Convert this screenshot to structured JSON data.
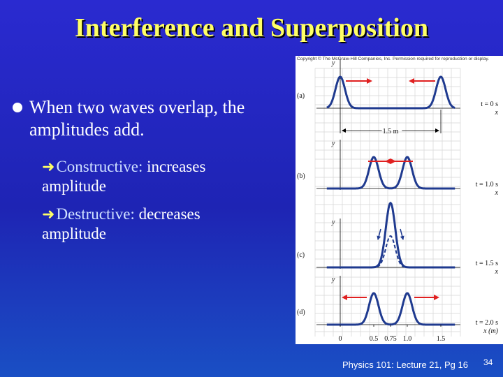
{
  "slide": {
    "title": "Interference and Superposition",
    "bullet": {
      "line1": "When two waves overlap, the",
      "line2": "amplitudes add."
    },
    "sub_bullets": [
      {
        "term": "Constructive:",
        "rest": " increases",
        "line2": "amplitude"
      },
      {
        "term": "Destructive:",
        "rest": " decreases",
        "line2": "amplitude"
      }
    ],
    "footer": "Physics 101: Lecture 21, Pg 16",
    "page_number": "34"
  },
  "figure": {
    "credit": "Copyright © The McGraw-Hill Companies, Inc. Permission required for reproduction or display.",
    "axis_y_label": "y",
    "axis_x_label": "x",
    "axis_x_label_last": "x (m)",
    "distance_label": "1.5 m",
    "panels": [
      {
        "label": "(a)",
        "time": "t = 0 s"
      },
      {
        "label": "(b)",
        "time": "t = 1.0 s"
      },
      {
        "label": "(c)",
        "time": "t = 1.5 s"
      },
      {
        "label": "(d)",
        "time": "t = 2.0 s"
      }
    ],
    "x_ticks": [
      "0",
      "0.5",
      "0.75",
      "1.0",
      "1.5"
    ],
    "colors": {
      "wave": "#1f3a8f",
      "arrow": "#e02020",
      "grid": "#d4d4d4"
    }
  }
}
